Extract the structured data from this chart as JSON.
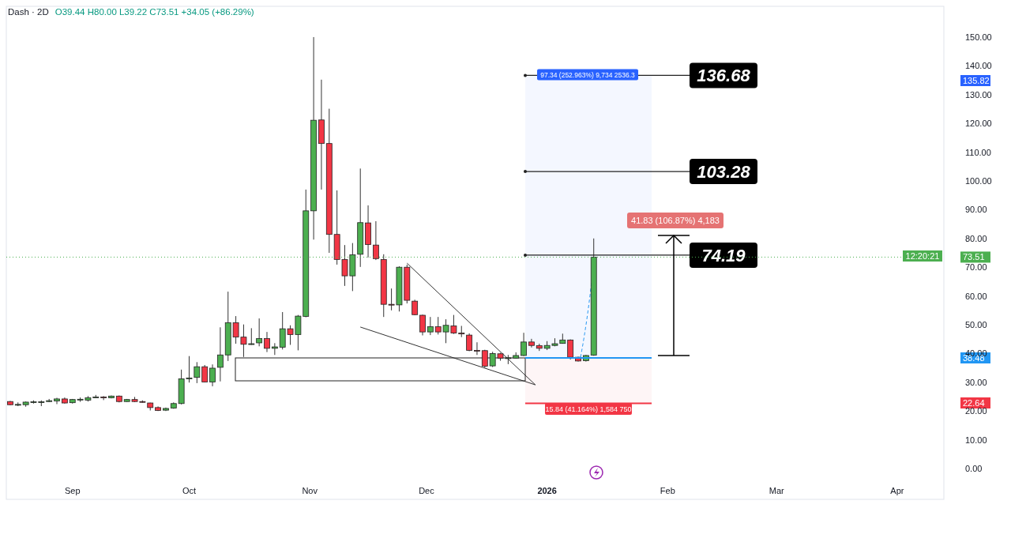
{
  "chart_data": {
    "type": "candlestick",
    "title": "Dash · 2D",
    "subtitle": "O39.44 H80.00 L39.22 C73.51 +34.05 (+86.29%)",
    "x": [
      "2025-08-16",
      "2025-08-18",
      "2025-08-20",
      "2025-08-22",
      "2025-08-24",
      "2025-08-26",
      "2025-08-28",
      "2025-08-30",
      "2025-09-01",
      "2025-09-03",
      "2025-09-05",
      "2025-09-07",
      "2025-09-09",
      "2025-09-11",
      "2025-09-13",
      "2025-09-15",
      "2025-09-17",
      "2025-09-19",
      "2025-09-21",
      "2025-09-23",
      "2025-09-25",
      "2025-09-27",
      "2025-09-29",
      "2025-10-01",
      "2025-10-03",
      "2025-10-05",
      "2025-10-07",
      "2025-10-09",
      "2025-10-11",
      "2025-10-13",
      "2025-10-15",
      "2025-10-17",
      "2025-10-19",
      "2025-10-21",
      "2025-10-23",
      "2025-10-25",
      "2025-10-27",
      "2025-10-29",
      "2025-10-31",
      "2025-11-02",
      "2025-11-04",
      "2025-11-06",
      "2025-11-08",
      "2025-11-10",
      "2025-11-12",
      "2025-11-14",
      "2025-11-16",
      "2025-11-18",
      "2025-11-20",
      "2025-11-22",
      "2025-11-24",
      "2025-11-26",
      "2025-11-28",
      "2025-11-30",
      "2025-12-02",
      "2025-12-04",
      "2025-12-06",
      "2025-12-08",
      "2025-12-10",
      "2025-12-12",
      "2025-12-14",
      "2025-12-16",
      "2025-12-18",
      "2025-12-20",
      "2025-12-22",
      "2025-12-24",
      "2025-12-26",
      "2025-12-28",
      "2025-12-30",
      "2026-01-01",
      "2026-01-03",
      "2026-01-05",
      "2026-01-07",
      "2026-01-09",
      "2026-01-11",
      "2026-01-13"
    ],
    "ohlc": [
      [
        23.3,
        23.5,
        22.0,
        22.2
      ],
      [
        22.2,
        23.0,
        21.7,
        22.3
      ],
      [
        22.2,
        23.3,
        21.5,
        23.1
      ],
      [
        23.1,
        23.7,
        22.6,
        23.2
      ],
      [
        23.2,
        23.7,
        21.7,
        23.2
      ],
      [
        23.3,
        24.2,
        23.1,
        23.6
      ],
      [
        23.5,
        24.6,
        22.4,
        24.2
      ],
      [
        24.2,
        24.7,
        22.6,
        22.8
      ],
      [
        22.9,
        24.2,
        22.6,
        24.0
      ],
      [
        24.0,
        24.7,
        23.2,
        24.1
      ],
      [
        23.8,
        25.2,
        23.3,
        24.6
      ],
      [
        24.7,
        25.6,
        24.6,
        24.9
      ],
      [
        24.9,
        25.2,
        23.8,
        24.6
      ],
      [
        24.6,
        25.4,
        24.4,
        25.2
      ],
      [
        25.2,
        25.4,
        23.0,
        23.3
      ],
      [
        23.3,
        24.2,
        23.2,
        24.0
      ],
      [
        24.0,
        24.9,
        23.1,
        23.3
      ],
      [
        23.3,
        23.7,
        22.9,
        23.1
      ],
      [
        22.8,
        22.9,
        20.2,
        21.2
      ],
      [
        21.2,
        21.6,
        20.0,
        20.2
      ],
      [
        20.3,
        21.2,
        20.0,
        20.9
      ],
      [
        21.0,
        23.0,
        20.8,
        22.6
      ],
      [
        22.6,
        34.4,
        22.3,
        31.2
      ],
      [
        31.2,
        39.1,
        29.9,
        31.5
      ],
      [
        31.7,
        37.0,
        29.7,
        35.4
      ],
      [
        35.4,
        36.0,
        30.0,
        30.1
      ],
      [
        30.1,
        36.2,
        28.6,
        34.9
      ],
      [
        35.2,
        49.1,
        30.3,
        39.5
      ],
      [
        39.5,
        61.5,
        37.4,
        50.7
      ],
      [
        50.7,
        53.0,
        43.4,
        45.7
      ],
      [
        45.7,
        50.1,
        38.8,
        43.2
      ],
      [
        43.2,
        48.8,
        43.0,
        43.4
      ],
      [
        43.7,
        52.2,
        42.5,
        45.2
      ],
      [
        45.2,
        47.5,
        40.5,
        41.8
      ],
      [
        41.8,
        43.6,
        39.5,
        42.3
      ],
      [
        42.2,
        54.4,
        41.4,
        48.6
      ],
      [
        48.6,
        49.8,
        43.0,
        46.6
      ],
      [
        46.6,
        53.4,
        41.1,
        53.0
      ],
      [
        52.9,
        97.0,
        52.6,
        89.6
      ],
      [
        89.6,
        150.0,
        79.6,
        121.1
      ],
      [
        121.2,
        135.2,
        97.0,
        113.0
      ],
      [
        113.0,
        125.1,
        75.0,
        81.4
      ],
      [
        81.4,
        96.7,
        70.9,
        72.7
      ],
      [
        72.7,
        77.7,
        63.5,
        67.0
      ],
      [
        67.0,
        78.4,
        61.7,
        74.3
      ],
      [
        74.5,
        104.3,
        70.1,
        85.5
      ],
      [
        85.4,
        91.5,
        73.4,
        77.9
      ],
      [
        77.7,
        86.0,
        72.5,
        73.0
      ],
      [
        72.7,
        74.5,
        52.7,
        57.1
      ],
      [
        57.1,
        62.6,
        55.0,
        56.9
      ],
      [
        56.9,
        70.3,
        54.6,
        70.0
      ],
      [
        70.0,
        70.9,
        57.4,
        58.5
      ],
      [
        58.2,
        58.7,
        53.3,
        53.5
      ],
      [
        53.3,
        53.5,
        46.3,
        47.5
      ],
      [
        47.5,
        52.7,
        46.4,
        49.3
      ],
      [
        49.3,
        52.7,
        46.6,
        47.5
      ],
      [
        47.5,
        51.9,
        43.6,
        49.8
      ],
      [
        49.6,
        53.4,
        46.8,
        47.1
      ],
      [
        47.1,
        49.6,
        45.7,
        46.8
      ],
      [
        46.4,
        47.0,
        40.8,
        41.1
      ],
      [
        41.1,
        43.9,
        39.5,
        40.9
      ],
      [
        41.0,
        41.3,
        35.0,
        35.6
      ],
      [
        35.7,
        40.6,
        35.3,
        40.0
      ],
      [
        39.9,
        40.2,
        37.5,
        38.4
      ],
      [
        38.4,
        39.5,
        36.3,
        38.5
      ],
      [
        38.4,
        40.4,
        38.3,
        39.3
      ],
      [
        39.3,
        47.2,
        39.1,
        44.0
      ],
      [
        44.0,
        45.1,
        42.1,
        42.8
      ],
      [
        42.7,
        43.4,
        40.9,
        41.8
      ],
      [
        41.8,
        44.3,
        41.2,
        42.8
      ],
      [
        42.8,
        45.3,
        42.5,
        43.4
      ],
      [
        43.5,
        46.9,
        43.4,
        44.7
      ],
      [
        44.7,
        44.9,
        37.9,
        38.7
      ],
      [
        38.7,
        38.9,
        37.2,
        37.4
      ],
      [
        37.5,
        39.5,
        37.2,
        39.3
      ],
      [
        39.44,
        80.0,
        39.22,
        73.51
      ]
    ],
    "xlim": [
      "2025-08-15",
      "2026-04-13"
    ],
    "xticks": [
      {
        "value": "2025-09-01",
        "label": "Sep"
      },
      {
        "value": "2025-10-01",
        "label": "Oct"
      },
      {
        "value": "2025-11-01",
        "label": "Nov"
      },
      {
        "value": "2025-12-01",
        "label": "Dec"
      },
      {
        "value": "2026-01-01",
        "label": "2026"
      },
      {
        "value": "2026-02-01",
        "label": "Feb"
      },
      {
        "value": "2026-03-01",
        "label": "Mar"
      },
      {
        "value": "2026-04-01",
        "label": "Apr"
      }
    ],
    "ylim": [
      -10.7,
      160.7
    ],
    "yticks": [
      {
        "value": 0,
        "label": "0.00"
      },
      {
        "value": 10,
        "label": "10.00"
      },
      {
        "value": 20,
        "label": "20.00"
      },
      {
        "value": 30,
        "label": "30.00"
      },
      {
        "value": 40,
        "label": "40.00"
      },
      {
        "value": 50,
        "label": "50.00"
      },
      {
        "value": 60,
        "label": "60.00"
      },
      {
        "value": 70,
        "label": "70.00"
      },
      {
        "value": 80,
        "label": "80.00"
      },
      {
        "value": 90,
        "label": "90.00"
      },
      {
        "value": 100,
        "label": "100.00"
      },
      {
        "value": 110,
        "label": "110.00"
      },
      {
        "value": 120,
        "label": "120.00"
      },
      {
        "value": 130,
        "label": "130.00"
      },
      {
        "value": 140,
        "label": "140.00"
      },
      {
        "value": 150,
        "label": "150.00"
      }
    ],
    "grid": false,
    "series": [
      {
        "type": "line",
        "color": "#333333",
        "x": [
          "2025-11-26",
          "2025-12-29"
        ],
        "values": [
          71.4,
          29.1
        ]
      },
      {
        "type": "line",
        "color": "#333333",
        "x": [
          "2025-11-14",
          "2025-12-29"
        ],
        "values": [
          49.2,
          29.1
        ]
      }
    ],
    "ref_lines": [
      {
        "axis": "y",
        "value": 136.68,
        "label": "136.68"
      },
      {
        "axis": "y",
        "value": 103.28,
        "label": "103.28"
      },
      {
        "axis": "y",
        "value": 74.19,
        "label": "74.19"
      },
      {
        "axis": "y",
        "value": 73.51,
        "label": "73.51",
        "color": "#4caf50",
        "line_style": "dotted"
      },
      {
        "axis": "y",
        "value": 38.48,
        "color": "#2196f3"
      },
      {
        "axis": "y",
        "value": 22.64,
        "color": "#f23645"
      }
    ],
    "bands": [
      {
        "axis": "y",
        "from": 38.48,
        "to": 136.68,
        "color": "#2962ff"
      },
      {
        "axis": "y",
        "from": 22.64,
        "to": 38.48,
        "color": "#f23645"
      }
    ],
    "annotations": [
      {
        "text": "97.34 (252.963%) 9,734 2536.3",
        "y": 136.68
      },
      "41.83 (106.87%) 4,183",
      "15.84 (41.164%) 1,584 750",
      "135.82",
      "12:20:21",
      "38.48",
      "22.64"
    ]
  }
}
